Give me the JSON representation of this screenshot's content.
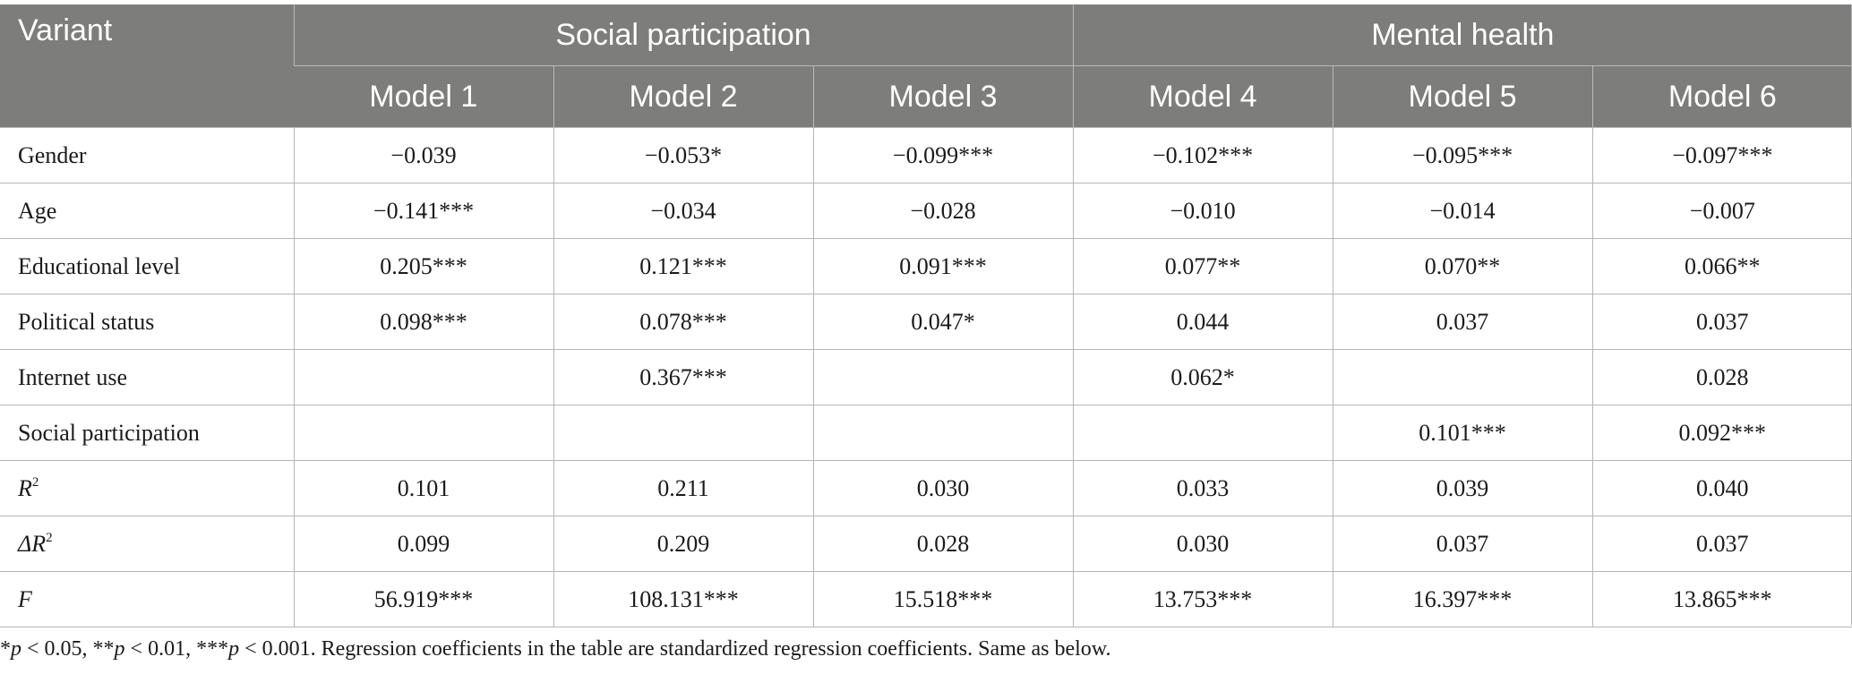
{
  "table": {
    "corner": "Variant",
    "groups": [
      "Social participation",
      "Mental health"
    ],
    "models": [
      "Model 1",
      "Model 2",
      "Model 3",
      "Model 4",
      "Model 5",
      "Model 6"
    ],
    "rows": [
      {
        "label": "Gender",
        "cells": [
          "−0.039",
          "−0.053*",
          "−0.099***",
          "−0.102***",
          "−0.095***",
          "−0.097***"
        ]
      },
      {
        "label": "Age",
        "cells": [
          "−0.141***",
          "−0.034",
          "−0.028",
          "−0.010",
          "−0.014",
          "−0.007"
        ]
      },
      {
        "label": "Educational level",
        "cells": [
          "0.205***",
          "0.121***",
          "0.091***",
          "0.077**",
          "0.070**",
          "0.066**"
        ]
      },
      {
        "label": "Political status",
        "cells": [
          "0.098***",
          "0.078***",
          "0.047*",
          "0.044",
          "0.037",
          "0.037"
        ]
      },
      {
        "label": "Internet use",
        "cells": [
          "",
          "0.367***",
          "",
          "0.062*",
          "",
          "0.028"
        ]
      },
      {
        "label": "Social participation",
        "cells": [
          "",
          "",
          "",
          "",
          "0.101***",
          "0.092***"
        ]
      },
      {
        "label": "R",
        "cells": [
          "0.101",
          "0.211",
          "0.030",
          "0.033",
          "0.039",
          "0.040"
        ]
      },
      {
        "label": "ΔR",
        "cells": [
          "0.099",
          "0.209",
          "0.028",
          "0.030",
          "0.037",
          "0.037"
        ]
      },
      {
        "label": "F",
        "cells": [
          "56.919***",
          "108.131***",
          "15.518***",
          "13.753***",
          "16.397***",
          "13.865***"
        ]
      }
    ],
    "superscript": "2"
  },
  "note": {
    "p1": "p",
    "t1": " < 0.05, **",
    "p2": "p",
    "t2": " < 0.01, ***",
    "p3": "p",
    "t3": " < 0.001. Regression coefficients in the table are standardized regression coefficients. Same as below.",
    "lead": "*"
  }
}
